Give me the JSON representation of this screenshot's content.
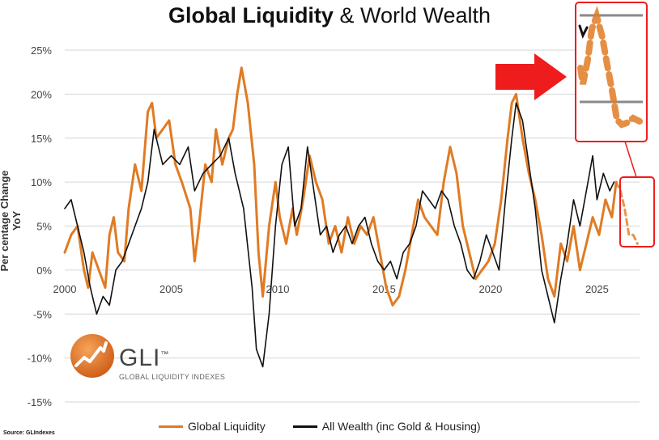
{
  "title_bold": "Global Liquidity",
  "title_rest": "& World Wealth",
  "ylabel": "Per centage Change YoY",
  "source": "Source: GLIndexes",
  "logo": {
    "text": "GLI",
    "tm": "™",
    "sub": "GLOBAL LIQUIDITY INDEXES"
  },
  "colors": {
    "liquidity": "#E07B24",
    "wealth": "#111111",
    "annotation": "#EE1C1C",
    "grid": "#D6D6D6"
  },
  "chart_data": {
    "type": "line",
    "title": "Global Liquidity & World Wealth",
    "xlabel": "",
    "ylabel": "Per centage Change YoY",
    "xlim": [
      2000,
      2027
    ],
    "ylim": [
      -15,
      25
    ],
    "xticks": [
      2000,
      2005,
      2010,
      2015,
      2020,
      2025
    ],
    "yticks": [
      25,
      20,
      15,
      10,
      5,
      0,
      -5,
      -10,
      -15
    ],
    "ytick_labels": [
      "25%",
      "20%",
      "15%",
      "10%",
      "5%",
      "0%",
      "-5%",
      "-10%",
      "-15%"
    ],
    "legend": [
      "Global Liquidity",
      "All Wealth (inc Gold & Housing)"
    ],
    "legend_position": "bottom",
    "series": [
      {
        "name": "Global Liquidity",
        "color": "#E07B24",
        "points": [
          [
            2000.0,
            2
          ],
          [
            2000.3,
            4
          ],
          [
            2000.6,
            5
          ],
          [
            2000.9,
            0
          ],
          [
            2001.1,
            -2
          ],
          [
            2001.3,
            2
          ],
          [
            2001.6,
            0
          ],
          [
            2001.9,
            -2
          ],
          [
            2002.1,
            4
          ],
          [
            2002.3,
            6
          ],
          [
            2002.5,
            2
          ],
          [
            2002.8,
            1
          ],
          [
            2003.0,
            7
          ],
          [
            2003.3,
            12
          ],
          [
            2003.6,
            9
          ],
          [
            2003.9,
            18
          ],
          [
            2004.1,
            19
          ],
          [
            2004.3,
            15
          ],
          [
            2004.6,
            16
          ],
          [
            2004.9,
            17
          ],
          [
            2005.2,
            12
          ],
          [
            2005.5,
            10
          ],
          [
            2005.9,
            7
          ],
          [
            2006.1,
            1
          ],
          [
            2006.3,
            5
          ],
          [
            2006.6,
            12
          ],
          [
            2006.9,
            10
          ],
          [
            2007.1,
            16
          ],
          [
            2007.4,
            12
          ],
          [
            2007.7,
            15
          ],
          [
            2007.9,
            16
          ],
          [
            2008.1,
            20
          ],
          [
            2008.3,
            23
          ],
          [
            2008.6,
            19
          ],
          [
            2008.9,
            12
          ],
          [
            2009.1,
            2
          ],
          [
            2009.3,
            -3
          ],
          [
            2009.6,
            5
          ],
          [
            2009.9,
            10
          ],
          [
            2010.1,
            6
          ],
          [
            2010.4,
            3
          ],
          [
            2010.7,
            7
          ],
          [
            2010.9,
            4
          ],
          [
            2011.2,
            8
          ],
          [
            2011.5,
            13
          ],
          [
            2011.8,
            10
          ],
          [
            2012.1,
            8
          ],
          [
            2012.4,
            3
          ],
          [
            2012.7,
            5
          ],
          [
            2013.0,
            2
          ],
          [
            2013.3,
            6
          ],
          [
            2013.6,
            3
          ],
          [
            2013.9,
            5
          ],
          [
            2014.2,
            4
          ],
          [
            2014.5,
            6
          ],
          [
            2014.8,
            2
          ],
          [
            2015.1,
            -2
          ],
          [
            2015.4,
            -4
          ],
          [
            2015.7,
            -3
          ],
          [
            2016.0,
            0
          ],
          [
            2016.3,
            4
          ],
          [
            2016.6,
            8
          ],
          [
            2016.9,
            6
          ],
          [
            2017.2,
            5
          ],
          [
            2017.5,
            4
          ],
          [
            2017.8,
            10
          ],
          [
            2018.1,
            14
          ],
          [
            2018.4,
            11
          ],
          [
            2018.7,
            5
          ],
          [
            2019.0,
            2
          ],
          [
            2019.3,
            -1
          ],
          [
            2019.6,
            0
          ],
          [
            2019.9,
            1
          ],
          [
            2020.2,
            3
          ],
          [
            2020.5,
            8
          ],
          [
            2020.8,
            15
          ],
          [
            2021.0,
            19
          ],
          [
            2021.2,
            20
          ],
          [
            2021.5,
            15
          ],
          [
            2021.8,
            11
          ],
          [
            2022.1,
            8
          ],
          [
            2022.4,
            4
          ],
          [
            2022.7,
            -1
          ],
          [
            2023.0,
            -3
          ],
          [
            2023.3,
            3
          ],
          [
            2023.6,
            1
          ],
          [
            2023.9,
            5
          ],
          [
            2024.2,
            0
          ],
          [
            2024.5,
            3
          ],
          [
            2024.8,
            6
          ],
          [
            2025.1,
            4
          ],
          [
            2025.4,
            8
          ],
          [
            2025.7,
            6
          ],
          [
            2025.9,
            10
          ]
        ]
      },
      {
        "name": "Global Liquidity (projection)",
        "color": "#E07B24",
        "dashed": true,
        "points": [
          [
            2025.9,
            10
          ],
          [
            2026.1,
            9
          ],
          [
            2026.3,
            7
          ],
          [
            2026.5,
            4
          ],
          [
            2026.7,
            4
          ],
          [
            2026.9,
            3
          ]
        ]
      },
      {
        "name": "All Wealth (inc Gold & Housing)",
        "color": "#111111",
        "points": [
          [
            2000.0,
            7
          ],
          [
            2000.3,
            8
          ],
          [
            2000.6,
            5
          ],
          [
            2000.9,
            2
          ],
          [
            2001.2,
            -2
          ],
          [
            2001.5,
            -5
          ],
          [
            2001.8,
            -3
          ],
          [
            2002.1,
            -4
          ],
          [
            2002.4,
            0
          ],
          [
            2002.7,
            1
          ],
          [
            2003.0,
            3
          ],
          [
            2003.3,
            5
          ],
          [
            2003.6,
            7
          ],
          [
            2003.9,
            10
          ],
          [
            2004.2,
            16
          ],
          [
            2004.6,
            12
          ],
          [
            2005.0,
            13
          ],
          [
            2005.4,
            12
          ],
          [
            2005.8,
            14
          ],
          [
            2006.1,
            9
          ],
          [
            2006.5,
            11
          ],
          [
            2006.9,
            12
          ],
          [
            2007.3,
            13
          ],
          [
            2007.7,
            15
          ],
          [
            2008.0,
            11
          ],
          [
            2008.4,
            7
          ],
          [
            2008.8,
            -2
          ],
          [
            2009.0,
            -9
          ],
          [
            2009.3,
            -11
          ],
          [
            2009.6,
            -5
          ],
          [
            2009.9,
            5
          ],
          [
            2010.2,
            12
          ],
          [
            2010.5,
            14
          ],
          [
            2010.8,
            5
          ],
          [
            2011.1,
            7
          ],
          [
            2011.4,
            14
          ],
          [
            2011.7,
            9
          ],
          [
            2012.0,
            4
          ],
          [
            2012.3,
            5
          ],
          [
            2012.6,
            2
          ],
          [
            2012.9,
            4
          ],
          [
            2013.2,
            5
          ],
          [
            2013.5,
            3
          ],
          [
            2013.8,
            5
          ],
          [
            2014.1,
            6
          ],
          [
            2014.4,
            3
          ],
          [
            2014.7,
            1
          ],
          [
            2015.0,
            0
          ],
          [
            2015.3,
            1
          ],
          [
            2015.6,
            -1
          ],
          [
            2015.9,
            2
          ],
          [
            2016.2,
            3
          ],
          [
            2016.5,
            5
          ],
          [
            2016.8,
            9
          ],
          [
            2017.1,
            8
          ],
          [
            2017.4,
            7
          ],
          [
            2017.7,
            9
          ],
          [
            2018.0,
            8
          ],
          [
            2018.3,
            5
          ],
          [
            2018.6,
            3
          ],
          [
            2018.9,
            0
          ],
          [
            2019.2,
            -1
          ],
          [
            2019.5,
            1
          ],
          [
            2019.8,
            4
          ],
          [
            2020.1,
            2
          ],
          [
            2020.4,
            0
          ],
          [
            2020.7,
            8
          ],
          [
            2021.0,
            15
          ],
          [
            2021.2,
            19
          ],
          [
            2021.5,
            17
          ],
          [
            2021.8,
            12
          ],
          [
            2022.1,
            7
          ],
          [
            2022.4,
            0
          ],
          [
            2022.7,
            -3
          ],
          [
            2023.0,
            -6
          ],
          [
            2023.3,
            -1
          ],
          [
            2023.6,
            3
          ],
          [
            2023.9,
            8
          ],
          [
            2024.2,
            5
          ],
          [
            2024.5,
            9
          ],
          [
            2024.8,
            13
          ],
          [
            2025.0,
            8
          ],
          [
            2025.3,
            11
          ],
          [
            2025.6,
            9
          ],
          [
            2025.8,
            10
          ]
        ]
      }
    ],
    "annotation": "red arrow pointing at zoomed inset of projected 2025-2026 liquidity"
  }
}
